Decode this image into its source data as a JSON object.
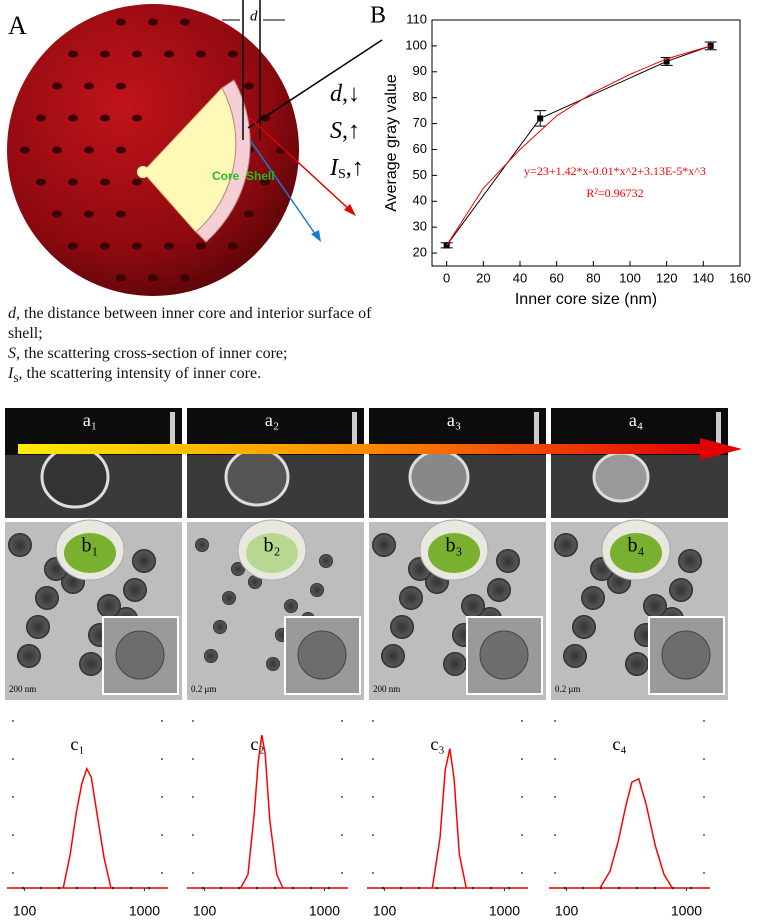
{
  "panel_a": {
    "label": "A",
    "d_label": "d",
    "core": "Core",
    "shell": "Shell",
    "trends": [
      {
        "symbol": "d",
        "text": ",↓"
      },
      {
        "symbol": "S",
        "text": ",↑"
      },
      {
        "symbol": "I",
        "sub": "S",
        "text": ",↑"
      }
    ],
    "definitions": [
      {
        "symbol": "d",
        "text": ", the distance between inner core and interior surface of shell;"
      },
      {
        "symbol": "S",
        "text": ", the scattering cross-section of inner core;"
      },
      {
        "symbol": "I",
        "sub": "s",
        "text": ", the scattering intensity of inner core."
      }
    ]
  },
  "images": {
    "a_labels": [
      "a₁",
      "a₂",
      "a₃",
      "a₄"
    ],
    "b_labels": [
      "b₁",
      "b₂",
      "b₃",
      "b₄"
    ],
    "scale_bars": [
      "200 nm",
      "0.2 μm",
      "200 nm",
      "0.2 μm"
    ]
  },
  "chart_data": [
    {
      "type": "scatter",
      "label": "B",
      "xlabel": "Inner core size (nm)",
      "ylabel": "Average gray value",
      "x": [
        0,
        51,
        120,
        144
      ],
      "series": [
        {
          "color": "#000000",
          "values": [
            23,
            72,
            94,
            100
          ],
          "errors": [
            1,
            3,
            1.5,
            1.5
          ]
        },
        {
          "color": "#ff0000",
          "x": [
            0,
            20,
            40,
            60,
            80,
            100,
            120,
            144
          ],
          "values": [
            23,
            45,
            60,
            73,
            82,
            89,
            95,
            100
          ]
        }
      ],
      "annotations": [
        "y=23+1.42*x-0.01*x^2+3.13E-5*x^3",
        "R²=0.96732"
      ],
      "annotation_color": "#ff0000",
      "xlim": [
        -8,
        160
      ],
      "ylim": [
        15,
        110
      ],
      "xticks": [
        0,
        20,
        40,
        60,
        80,
        100,
        120,
        140,
        160
      ],
      "yticks": [
        20,
        30,
        40,
        50,
        60,
        70,
        80,
        90,
        100,
        110
      ]
    },
    {
      "type": "line",
      "title": "c₁",
      "xlog": true,
      "xlim": [
        80,
        1400
      ],
      "ylim": [
        0,
        100
      ],
      "xticks": [
        100,
        1000
      ],
      "x": [
        210,
        240,
        270,
        300,
        330,
        360,
        400,
        460,
        525
      ],
      "series": [
        {
          "color": "#ff0000",
          "values": [
            0,
            20,
            45,
            62,
            71,
            66,
            45,
            18,
            0
          ]
        }
      ]
    },
    {
      "type": "line",
      "title": "c₂",
      "xlog": true,
      "xlim": [
        80,
        1400
      ],
      "ylim": [
        0,
        100
      ],
      "xticks": [
        100,
        1000
      ],
      "x": [
        200,
        230,
        260,
        280,
        300,
        320,
        350,
        400,
        450
      ],
      "series": [
        {
          "color": "#ff0000",
          "values": [
            0,
            8,
            45,
            75,
            91,
            80,
            40,
            8,
            0
          ]
        }
      ]
    },
    {
      "type": "line",
      "title": "c₃",
      "xlog": true,
      "xlim": [
        80,
        1400
      ],
      "ylim": [
        0,
        100
      ],
      "xticks": [
        100,
        1000
      ],
      "x": [
        250,
        290,
        320,
        350,
        380,
        420,
        480
      ],
      "series": [
        {
          "color": "#ff0000",
          "values": [
            0,
            30,
            70,
            83,
            65,
            20,
            0
          ]
        }
      ]
    },
    {
      "type": "line",
      "title": "c₄",
      "xlog": true,
      "xlim": [
        80,
        1400
      ],
      "ylim": [
        0,
        100
      ],
      "xticks": [
        100,
        1000
      ],
      "x": [
        190,
        230,
        270,
        310,
        350,
        400,
        460,
        550,
        650,
        760
      ],
      "series": [
        {
          "color": "#ff0000",
          "values": [
            0,
            10,
            28,
            48,
            63,
            65,
            50,
            25,
            8,
            0
          ]
        }
      ]
    }
  ]
}
